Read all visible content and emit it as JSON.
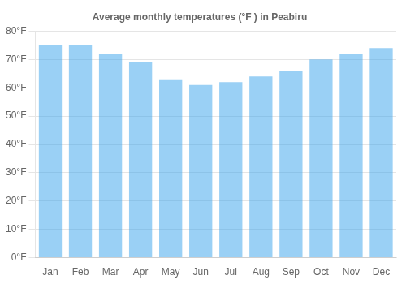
{
  "chart_data": {
    "type": "bar",
    "title": "Average monthly temperatures (°F ) in Peabiru",
    "categories": [
      "Jan",
      "Feb",
      "Mar",
      "Apr",
      "May",
      "Jun",
      "Jul",
      "Aug",
      "Sep",
      "Oct",
      "Nov",
      "Dec"
    ],
    "values": [
      75,
      75,
      72,
      69,
      63,
      61,
      62,
      64,
      66,
      70,
      72,
      74
    ],
    "ylim": [
      0,
      80
    ],
    "yticks": [
      {
        "value": 0,
        "label": "0°F"
      },
      {
        "value": 10,
        "label": "10°F"
      },
      {
        "value": 20,
        "label": "20°F"
      },
      {
        "value": 30,
        "label": "30°F"
      },
      {
        "value": 40,
        "label": "40°F"
      },
      {
        "value": 50,
        "label": "50°F"
      },
      {
        "value": 60,
        "label": "60°F"
      },
      {
        "value": 70,
        "label": "70°F"
      },
      {
        "value": 80,
        "label": "80°F"
      }
    ],
    "grid": true
  }
}
